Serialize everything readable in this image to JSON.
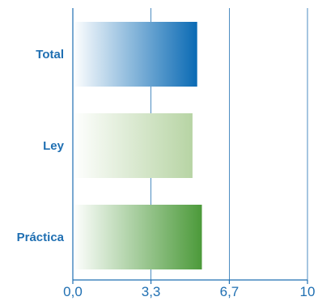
{
  "chart_data": {
    "type": "bar",
    "orientation": "horizontal",
    "categories": [
      "Total",
      "Ley",
      "Práctica"
    ],
    "values": [
      5.3,
      5.1,
      5.5
    ],
    "xlim": [
      0,
      10
    ],
    "x_ticks": [
      "0,0",
      "3,3",
      "6,7",
      "10"
    ],
    "x_tick_values": [
      0,
      3.33,
      6.67,
      10
    ],
    "grid": "vertical",
    "title": "",
    "xlabel": "",
    "ylabel": "",
    "colors": {
      "Total": [
        "#ffffff",
        "#0a6ab4"
      ],
      "Ley": [
        "#ffffff",
        "#b7d4a4"
      ],
      "Práctica": [
        "#ffffff",
        "#4c9a3a"
      ],
      "text": "#1f6fb2",
      "grid": "#1f6fb2"
    }
  }
}
